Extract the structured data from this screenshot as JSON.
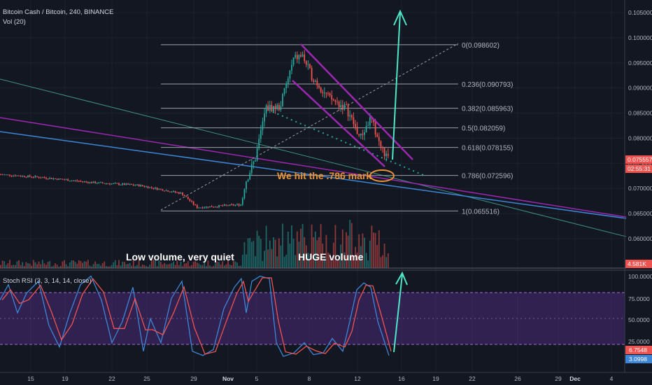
{
  "header": {
    "symbol": "Bitcoin Cash / Bitcoin, 240, BINANCE",
    "volume_indicator": "Vol (20)",
    "rsi_indicator": "Stoch RSI (3, 3, 14, 14, close)"
  },
  "colors": {
    "background": "#131722",
    "up_candle": "#26a69a",
    "down_candle": "#ef5350",
    "fib_line": "#787b86",
    "channel": "#9c27b0",
    "arrow": "#4ee6c8",
    "blue_trend": "#3d86d6",
    "annotation": "#e8923a",
    "rsi_band": "#4a2a78"
  },
  "annotations": {
    "hit_786": "We hit the .786 mark",
    "low_volume": "Low volume, very quiet",
    "huge_volume": "HUGE volume"
  },
  "fib_levels": [
    {
      "label": "0(0.098602)",
      "price": 0.098602
    },
    {
      "label": "0.236(0.090793)",
      "price": 0.090793
    },
    {
      "label": "0.382(0.085963)",
      "price": 0.085963
    },
    {
      "label": "0.5(0.082059)",
      "price": 0.082059
    },
    {
      "label": "0.618(0.078155)",
      "price": 0.078155
    },
    {
      "label": "0.786(0.072596)",
      "price": 0.072596
    },
    {
      "label": "1(0.065516)",
      "price": 0.065516
    }
  ],
  "price_scale": {
    "ticks": [
      "0.105000",
      "0.100000",
      "0.095000",
      "0.090000",
      "0.085000",
      "0.080000",
      "0.075000",
      "0.070000",
      "0.065000",
      "0.060000"
    ],
    "current_price": "0.075557",
    "countdown": "02:55:31",
    "volume_badge": "4.581K"
  },
  "rsi_scale": {
    "ticks": [
      "100.0000",
      "75.0000",
      "50.0000",
      "25.0000"
    ],
    "k_value": "6.7548",
    "d_value": "3.0998"
  },
  "time_axis": [
    "15",
    "19",
    "22",
    "25",
    "29",
    "Nov",
    "5",
    "8",
    "12",
    "16",
    "19",
    "22",
    "26",
    "29",
    "Dec",
    "4"
  ],
  "chart_data": {
    "type": "candlestick",
    "title": "Bitcoin Cash / Bitcoin, 240, BINANCE",
    "y_range": [
      0.0575,
      0.1055
    ],
    "price_path": [
      [
        "Oct 12",
        0.0728
      ],
      [
        "Oct 17",
        0.0722
      ],
      [
        "Oct 22",
        0.0712
      ],
      [
        "Oct 26",
        0.069
      ],
      [
        "Oct 29",
        0.0662
      ],
      [
        "Nov 1",
        0.0668
      ],
      [
        "Nov 3",
        0.0745
      ],
      [
        "Nov 5",
        0.0855
      ],
      [
        "Nov 7",
        0.0962
      ],
      [
        "Nov 8",
        0.093
      ],
      [
        "Nov 10",
        0.087
      ],
      [
        "Nov 12",
        0.08
      ],
      [
        "Nov 13",
        0.084
      ],
      [
        "Nov 14",
        0.0758
      ]
    ],
    "volume_profile": "low before Nov, huge after Nov 3",
    "stoch_rsi": {
      "k": 6.7548,
      "d": 3.0998,
      "bands": [
        20,
        80
      ]
    }
  }
}
